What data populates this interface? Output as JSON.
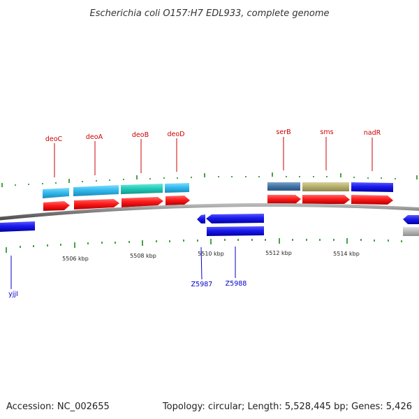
{
  "title": "Escherichia coli O157:H7 EDL933, complete genome",
  "footer": {
    "accession": "Accession: NC_002655",
    "summary": "Topology: circular; Length: 5,528,445 bp; Genes: 5,426"
  },
  "axis": {
    "labels": [
      "5506 kbp",
      "5508 kbp",
      "5510 kbp",
      "5512 kbp",
      "5514 kbp"
    ]
  },
  "genes_forward": [
    "deoC",
    "deoA",
    "deoB",
    "deoD",
    "serB",
    "sms",
    "nadR"
  ],
  "genes_reverse": [
    "yjjI",
    "Z5987",
    "Z5988"
  ],
  "colors": {
    "backbone": "#8a8a8a",
    "tick": "#1a8a1a",
    "forward_label": "#cc0000",
    "reverse_label": "#0000cc",
    "cds": "#ff1a1a",
    "gene_blue": "#1a1aee",
    "gene_lightblue": "#33bbee",
    "gene_cyan": "#22ccbb",
    "gene_steel": "#4477aa",
    "gene_khaki": "#b8b070",
    "gene_gray": "#bbbbbb"
  }
}
